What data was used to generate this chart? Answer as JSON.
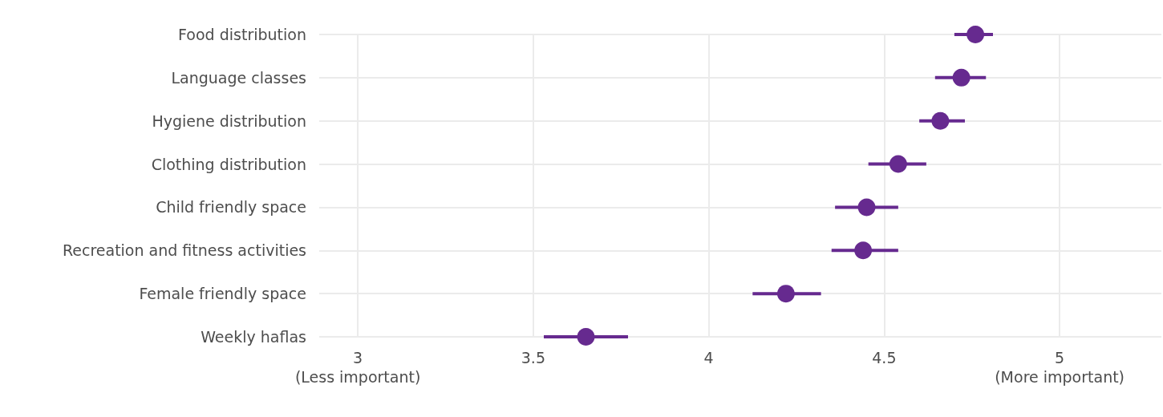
{
  "chart_data": {
    "type": "scatter",
    "orientation": "horizontal",
    "categories": [
      "Food distribution",
      "Language classes",
      "Hygiene distribution",
      "Clothing distribution",
      "Child friendly space",
      "Recreation and fitness activities",
      "Female friendly space",
      "Weekly haflas"
    ],
    "values": [
      4.76,
      4.72,
      4.66,
      4.54,
      4.45,
      4.44,
      4.22,
      3.65
    ],
    "errors": [
      [
        4.7,
        4.81
      ],
      [
        4.645,
        4.79
      ],
      [
        4.6,
        4.73
      ],
      [
        4.455,
        4.62
      ],
      [
        4.36,
        4.54
      ],
      [
        4.35,
        4.54
      ],
      [
        4.125,
        4.32
      ],
      [
        3.53,
        3.77
      ]
    ],
    "color": "#662a8f",
    "xlim": [
      2.89,
      5.29
    ],
    "xticks": [
      {
        "value": 3,
        "label": "3\n(Less important)"
      },
      3.5,
      4,
      4.5,
      {
        "value": 5,
        "label": "5\n(More important)"
      }
    ],
    "grid": true,
    "marker": "circle"
  }
}
